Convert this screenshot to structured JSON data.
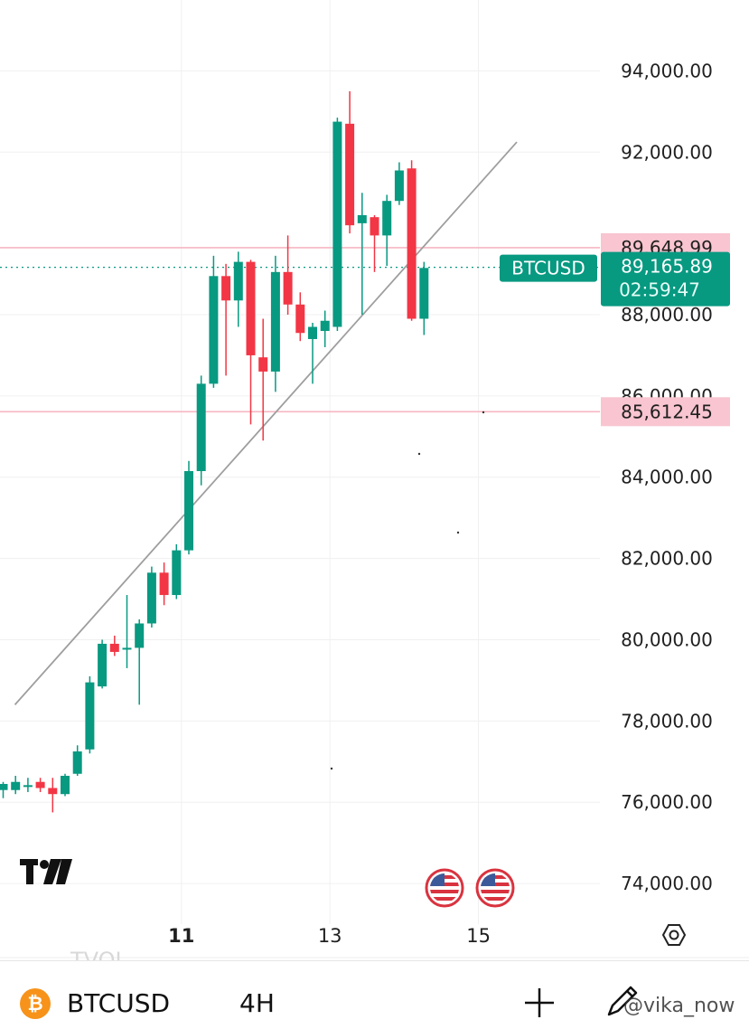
{
  "chart_data": {
    "type": "candlestick",
    "symbol": "BTCUSD",
    "interval": "4H",
    "ylim": [
      73000,
      95300
    ],
    "yticks": [
      {
        "value": 94000,
        "label": "94,000.00"
      },
      {
        "value": 92000,
        "label": "92,000.00"
      },
      {
        "value": 88000,
        "label": "88,000.00"
      },
      {
        "value": 86000,
        "label": "86,000.00"
      },
      {
        "value": 84000,
        "label": "84,000.00"
      },
      {
        "value": 82000,
        "label": "82,000.00"
      },
      {
        "value": 80000,
        "label": "80,000.00"
      },
      {
        "value": 78000,
        "label": "78,000.00"
      },
      {
        "value": 76000,
        "label": "76,000.00"
      },
      {
        "value": 74000,
        "label": "74,000.00"
      }
    ],
    "xticks": [
      {
        "label": "11",
        "index": 14.4,
        "bold": true
      },
      {
        "label": "13",
        "index": 26.4,
        "bold": false
      },
      {
        "label": "15",
        "index": 38.4,
        "bold": false
      }
    ],
    "candles": [
      {
        "o": 76300,
        "h": 76500,
        "l": 76100,
        "c": 76450
      },
      {
        "o": 76300,
        "h": 76650,
        "l": 76200,
        "c": 76500
      },
      {
        "o": 76400,
        "h": 76600,
        "l": 76250,
        "c": 76420
      },
      {
        "o": 76500,
        "h": 76600,
        "l": 76250,
        "c": 76350
      },
      {
        "o": 76350,
        "h": 76600,
        "l": 75750,
        "c": 76200
      },
      {
        "o": 76200,
        "h": 76700,
        "l": 76150,
        "c": 76650
      },
      {
        "o": 76700,
        "h": 77400,
        "l": 76650,
        "c": 77250
      },
      {
        "o": 77300,
        "h": 79100,
        "l": 77200,
        "c": 78950
      },
      {
        "o": 78850,
        "h": 80000,
        "l": 78800,
        "c": 79900
      },
      {
        "o": 79900,
        "h": 80100,
        "l": 79600,
        "c": 79700
      },
      {
        "o": 79800,
        "h": 81100,
        "l": 79300,
        "c": 79800
      },
      {
        "o": 79800,
        "h": 80500,
        "l": 78400,
        "c": 80400
      },
      {
        "o": 80400,
        "h": 81800,
        "l": 80300,
        "c": 81650
      },
      {
        "o": 81650,
        "h": 81900,
        "l": 80850,
        "c": 81100
      },
      {
        "o": 81100,
        "h": 82350,
        "l": 81000,
        "c": 82200
      },
      {
        "o": 82200,
        "h": 84400,
        "l": 82100,
        "c": 84150
      },
      {
        "o": 84150,
        "h": 86500,
        "l": 83800,
        "c": 86300
      },
      {
        "o": 86300,
        "h": 89450,
        "l": 86200,
        "c": 88950
      },
      {
        "o": 88950,
        "h": 89250,
        "l": 86500,
        "c": 88350
      },
      {
        "o": 88350,
        "h": 89550,
        "l": 87700,
        "c": 89300
      },
      {
        "o": 89300,
        "h": 89350,
        "l": 85300,
        "c": 87000
      },
      {
        "o": 86950,
        "h": 87900,
        "l": 84900,
        "c": 86600
      },
      {
        "o": 86600,
        "h": 89450,
        "l": 86100,
        "c": 89050
      },
      {
        "o": 89050,
        "h": 89950,
        "l": 88000,
        "c": 88250
      },
      {
        "o": 88250,
        "h": 88550,
        "l": 87350,
        "c": 87550
      },
      {
        "o": 87400,
        "h": 87800,
        "l": 86300,
        "c": 87700
      },
      {
        "o": 87600,
        "h": 88100,
        "l": 87200,
        "c": 87850
      },
      {
        "o": 87700,
        "h": 92850,
        "l": 87600,
        "c": 92750
      },
      {
        "o": 92700,
        "h": 93500,
        "l": 90000,
        "c": 90200
      },
      {
        "o": 90250,
        "h": 91000,
        "l": 88000,
        "c": 90450
      },
      {
        "o": 90400,
        "h": 90450,
        "l": 89050,
        "c": 89950
      },
      {
        "o": 89950,
        "h": 90950,
        "l": 89200,
        "c": 90800
      },
      {
        "o": 90800,
        "h": 91750,
        "l": 90700,
        "c": 91550
      },
      {
        "o": 91600,
        "h": 91800,
        "l": 87850,
        "c": 87900
      },
      {
        "o": 87900,
        "h": 89300,
        "l": 87500,
        "c": 89150
      }
    ],
    "trendline": {
      "start": {
        "index": 0.95,
        "price": 78400
      },
      "end": {
        "index": 41.5,
        "price": 92250
      }
    },
    "horizontal_lines": [
      {
        "price": 89648.99,
        "label": "89,648.99"
      },
      {
        "price": 85612.45,
        "label": "85,612.45"
      }
    ],
    "last_price": {
      "price": 89165.89,
      "label": "89,165.89",
      "countdown": "02:59:47",
      "symbol": "BTCUSD"
    }
  },
  "colors": {
    "up": "#089981",
    "down": "#f23645",
    "grid": "#f0f0f0",
    "hline": "#f7b6c2",
    "tag_bg": "#f8c5d0",
    "trend": "#9e9e9e"
  },
  "toolbar": {
    "symbol": "BTCUSD",
    "interval": "4H",
    "ghost_label": "TVOL",
    "coin_glyph": "₿",
    "watermark": "@vika_now"
  },
  "icons": [
    "tradingview-logo-icon",
    "us-flag-icon",
    "settings-hexagon-icon",
    "bitcoin-icon",
    "plus-icon",
    "pen-icon"
  ]
}
